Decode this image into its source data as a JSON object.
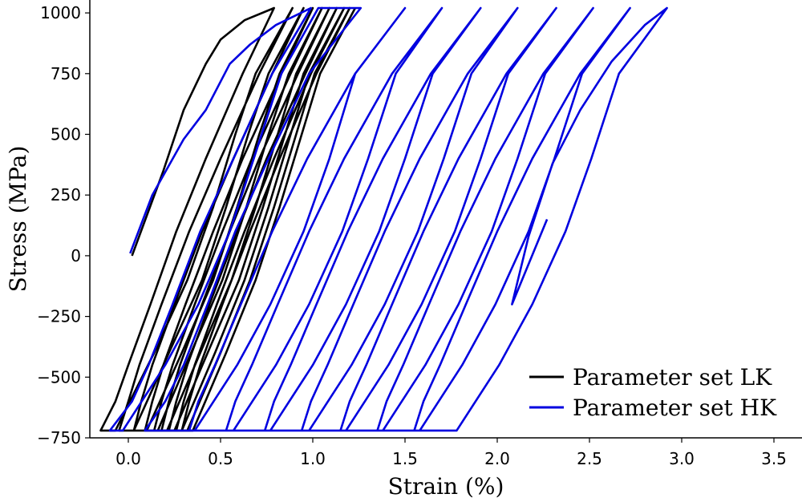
{
  "chart_data": {
    "type": "line",
    "xlabel": "Strain (%)",
    "ylabel": "Stress (MPa)",
    "xlim": [
      -0.2,
      3.65
    ],
    "ylim": [
      -750,
      1050
    ],
    "xticks": [
      0.0,
      0.5,
      1.0,
      1.5,
      2.0,
      2.5,
      3.0,
      3.5
    ],
    "xtick_labels": [
      "0.0",
      "0.5",
      "1.0",
      "1.5",
      "2.0",
      "2.5",
      "3.0",
      "3.5"
    ],
    "yticks": [
      -750,
      -500,
      -250,
      0,
      250,
      500,
      750,
      1000
    ],
    "ytick_labels": [
      "−750",
      "−500",
      "−250",
      "0",
      "250",
      "500",
      "750",
      "1000"
    ],
    "grid": false,
    "legend_position": "lower-right",
    "series": [
      {
        "name": "Parameter set LK",
        "color": "#000000",
        "points": [
          [
            0.02,
            0
          ],
          [
            0.19,
            350
          ],
          [
            0.3,
            600
          ],
          [
            0.42,
            790
          ],
          [
            0.5,
            890
          ],
          [
            0.63,
            970
          ],
          [
            0.79,
            1020
          ],
          [
            0.62,
            750
          ],
          [
            0.42,
            400
          ],
          [
            0.26,
            100
          ],
          [
            0.12,
            -200
          ],
          [
            0.0,
            -450
          ],
          [
            -0.07,
            -600
          ],
          [
            -0.15,
            -720
          ],
          [
            -0.07,
            -720
          ],
          [
            0.14,
            -400
          ],
          [
            0.32,
            -100
          ],
          [
            0.46,
            200
          ],
          [
            0.58,
            500
          ],
          [
            0.69,
            750
          ],
          [
            0.89,
            1020
          ],
          [
            0.71,
            750
          ],
          [
            0.5,
            400
          ],
          [
            0.33,
            100
          ],
          [
            0.18,
            -200
          ],
          [
            0.06,
            -450
          ],
          [
            0.0,
            -600
          ],
          [
            -0.05,
            -720
          ],
          [
            0.03,
            -720
          ],
          [
            0.22,
            -400
          ],
          [
            0.4,
            -100
          ],
          [
            0.53,
            200
          ],
          [
            0.65,
            500
          ],
          [
            0.76,
            750
          ],
          [
            0.95,
            1020
          ],
          [
            0.78,
            750
          ],
          [
            0.57,
            400
          ],
          [
            0.4,
            100
          ],
          [
            0.25,
            -200
          ],
          [
            0.13,
            -450
          ],
          [
            0.07,
            -600
          ],
          [
            0.03,
            -720
          ],
          [
            0.1,
            -720
          ],
          [
            0.29,
            -400
          ],
          [
            0.46,
            -100
          ],
          [
            0.59,
            200
          ],
          [
            0.71,
            500
          ],
          [
            0.82,
            750
          ],
          [
            1.0,
            1020
          ],
          [
            0.83,
            750
          ],
          [
            0.62,
            400
          ],
          [
            0.46,
            100
          ],
          [
            0.31,
            -200
          ],
          [
            0.19,
            -450
          ],
          [
            0.13,
            -600
          ],
          [
            0.09,
            -720
          ],
          [
            0.16,
            -720
          ],
          [
            0.34,
            -400
          ],
          [
            0.51,
            -100
          ],
          [
            0.64,
            200
          ],
          [
            0.76,
            500
          ],
          [
            0.87,
            750
          ],
          [
            1.05,
            1020
          ],
          [
            0.88,
            750
          ],
          [
            0.67,
            400
          ],
          [
            0.51,
            100
          ],
          [
            0.36,
            -200
          ],
          [
            0.24,
            -450
          ],
          [
            0.18,
            -600
          ],
          [
            0.14,
            -720
          ],
          [
            0.21,
            -720
          ],
          [
            0.39,
            -400
          ],
          [
            0.56,
            -100
          ],
          [
            0.69,
            200
          ],
          [
            0.81,
            500
          ],
          [
            0.91,
            750
          ],
          [
            1.09,
            1020
          ],
          [
            0.92,
            750
          ],
          [
            0.71,
            400
          ],
          [
            0.55,
            100
          ],
          [
            0.4,
            -200
          ],
          [
            0.28,
            -450
          ],
          [
            0.22,
            -600
          ],
          [
            0.18,
            -720
          ],
          [
            0.25,
            -720
          ],
          [
            0.43,
            -400
          ],
          [
            0.6,
            -100
          ],
          [
            0.73,
            200
          ],
          [
            0.85,
            500
          ],
          [
            0.95,
            750
          ],
          [
            1.13,
            1020
          ],
          [
            0.96,
            750
          ],
          [
            0.75,
            400
          ],
          [
            0.59,
            100
          ],
          [
            0.44,
            -200
          ],
          [
            0.32,
            -450
          ],
          [
            0.26,
            -600
          ],
          [
            0.22,
            -720
          ],
          [
            0.29,
            -720
          ],
          [
            0.47,
            -400
          ],
          [
            0.63,
            -100
          ],
          [
            0.76,
            200
          ],
          [
            0.88,
            500
          ],
          [
            0.98,
            750
          ],
          [
            1.17,
            1020
          ],
          [
            0.99,
            750
          ],
          [
            0.79,
            400
          ],
          [
            0.63,
            100
          ],
          [
            0.48,
            -200
          ],
          [
            0.36,
            -450
          ],
          [
            0.3,
            -600
          ],
          [
            0.26,
            -720
          ],
          [
            0.32,
            -720
          ],
          [
            0.5,
            -400
          ],
          [
            0.66,
            -100
          ],
          [
            0.79,
            200
          ],
          [
            0.91,
            500
          ],
          [
            1.01,
            750
          ],
          [
            1.2,
            1020
          ],
          [
            1.02,
            750
          ],
          [
            0.82,
            400
          ],
          [
            0.66,
            100
          ],
          [
            0.51,
            -200
          ],
          [
            0.39,
            -450
          ],
          [
            0.33,
            -600
          ],
          [
            0.29,
            -720
          ],
          [
            0.35,
            -720
          ],
          [
            0.53,
            -400
          ],
          [
            0.69,
            -100
          ],
          [
            0.82,
            200
          ],
          [
            0.94,
            500
          ],
          [
            1.04,
            750
          ],
          [
            1.23,
            1020
          ]
        ]
      },
      {
        "name": "Parameter set HK",
        "color": "#0000e0",
        "points": [
          [
            0.01,
            10
          ],
          [
            0.13,
            250
          ],
          [
            0.3,
            480
          ],
          [
            0.42,
            600
          ],
          [
            0.55,
            790
          ],
          [
            0.66,
            870
          ],
          [
            0.8,
            950
          ],
          [
            0.99,
            1020
          ],
          [
            0.78,
            750
          ],
          [
            0.57,
            400
          ],
          [
            0.39,
            100
          ],
          [
            0.24,
            -200
          ],
          [
            0.11,
            -450
          ],
          [
            0.02,
            -600
          ],
          [
            -0.1,
            -720
          ],
          [
            -0.03,
            -720
          ],
          [
            0.2,
            -450
          ],
          [
            0.38,
            -200
          ],
          [
            0.55,
            100
          ],
          [
            0.68,
            400
          ],
          [
            0.83,
            750
          ],
          [
            1.03,
            1020
          ],
          [
            1.26,
            1020
          ],
          [
            0.98,
            750
          ],
          [
            0.76,
            400
          ],
          [
            0.58,
            100
          ],
          [
            0.43,
            -200
          ],
          [
            0.3,
            -450
          ],
          [
            0.2,
            -600
          ],
          [
            0.09,
            -720
          ],
          [
            0.36,
            -720
          ],
          [
            0.59,
            -450
          ],
          [
            0.77,
            -200
          ],
          [
            0.95,
            100
          ],
          [
            1.09,
            400
          ],
          [
            1.23,
            750
          ],
          [
            1.5,
            1020
          ],
          [
            1.23,
            750
          ],
          [
            0.97,
            400
          ],
          [
            0.78,
            100
          ],
          [
            0.61,
            -200
          ],
          [
            0.47,
            -450
          ],
          [
            0.38,
            -600
          ],
          [
            0.33,
            -720
          ],
          [
            0.57,
            -720
          ],
          [
            0.8,
            -450
          ],
          [
            0.98,
            -200
          ],
          [
            1.16,
            100
          ],
          [
            1.3,
            400
          ],
          [
            1.45,
            750
          ],
          [
            1.7,
            1020
          ],
          [
            1.43,
            750
          ],
          [
            1.17,
            400
          ],
          [
            0.98,
            100
          ],
          [
            0.81,
            -200
          ],
          [
            0.67,
            -450
          ],
          [
            0.58,
            -600
          ],
          [
            0.53,
            -720
          ],
          [
            0.77,
            -720
          ],
          [
            1.0,
            -450
          ],
          [
            1.18,
            -200
          ],
          [
            1.36,
            100
          ],
          [
            1.5,
            400
          ],
          [
            1.65,
            750
          ],
          [
            1.91,
            1020
          ],
          [
            1.64,
            750
          ],
          [
            1.38,
            400
          ],
          [
            1.19,
            100
          ],
          [
            1.02,
            -200
          ],
          [
            0.88,
            -450
          ],
          [
            0.79,
            -600
          ],
          [
            0.74,
            -720
          ],
          [
            0.98,
            -720
          ],
          [
            1.21,
            -450
          ],
          [
            1.39,
            -200
          ],
          [
            1.57,
            100
          ],
          [
            1.71,
            400
          ],
          [
            1.86,
            750
          ],
          [
            2.11,
            1020
          ],
          [
            1.84,
            750
          ],
          [
            1.58,
            400
          ],
          [
            1.39,
            100
          ],
          [
            1.22,
            -200
          ],
          [
            1.08,
            -450
          ],
          [
            0.99,
            -600
          ],
          [
            0.94,
            -720
          ],
          [
            1.18,
            -720
          ],
          [
            1.41,
            -450
          ],
          [
            1.59,
            -200
          ],
          [
            1.77,
            100
          ],
          [
            1.91,
            400
          ],
          [
            2.06,
            750
          ],
          [
            2.32,
            1020
          ],
          [
            2.05,
            750
          ],
          [
            1.79,
            400
          ],
          [
            1.6,
            100
          ],
          [
            1.43,
            -200
          ],
          [
            1.29,
            -450
          ],
          [
            1.2,
            -600
          ],
          [
            1.15,
            -720
          ],
          [
            1.38,
            -720
          ],
          [
            1.61,
            -450
          ],
          [
            1.79,
            -200
          ],
          [
            1.97,
            100
          ],
          [
            2.11,
            400
          ],
          [
            2.26,
            750
          ],
          [
            2.52,
            1020
          ],
          [
            2.25,
            750
          ],
          [
            1.99,
            400
          ],
          [
            1.8,
            100
          ],
          [
            1.63,
            -200
          ],
          [
            1.49,
            -450
          ],
          [
            1.4,
            -600
          ],
          [
            1.35,
            -720
          ],
          [
            1.58,
            -720
          ],
          [
            1.81,
            -450
          ],
          [
            1.99,
            -200
          ],
          [
            2.17,
            100
          ],
          [
            2.31,
            400
          ],
          [
            2.46,
            750
          ],
          [
            2.72,
            1020
          ],
          [
            2.45,
            750
          ],
          [
            2.19,
            400
          ],
          [
            2.0,
            100
          ],
          [
            1.83,
            -200
          ],
          [
            1.69,
            -450
          ],
          [
            1.6,
            -600
          ],
          [
            1.55,
            -720
          ],
          [
            1.78,
            -720
          ],
          [
            2.01,
            -450
          ],
          [
            2.19,
            -200
          ],
          [
            2.37,
            100
          ],
          [
            2.51,
            400
          ],
          [
            2.66,
            750
          ],
          [
            2.92,
            1020
          ],
          [
            2.8,
            950
          ],
          [
            2.62,
            800
          ],
          [
            2.45,
            600
          ],
          [
            2.3,
            380
          ],
          [
            2.17,
            80
          ],
          [
            2.08,
            -200
          ],
          [
            2.27,
            150
          ]
        ]
      }
    ]
  }
}
